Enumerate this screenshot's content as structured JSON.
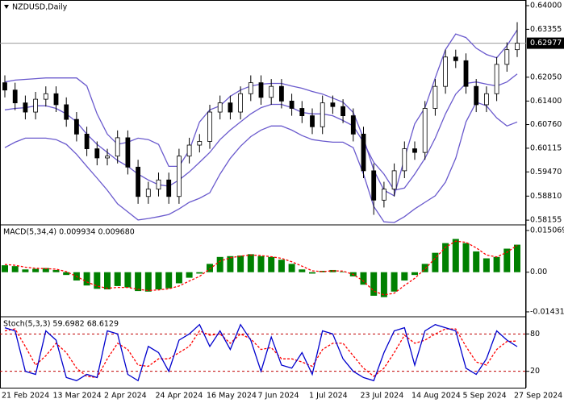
{
  "chart_data": [
    {
      "type": "candlestick",
      "title": "NZDUSD,Daily",
      "categories": [
        "21 Feb 2024",
        null,
        null,
        null,
        null,
        "13 Mar 2024",
        null,
        null,
        null,
        null,
        "2 Apr 2024",
        null,
        null,
        null,
        null,
        "24 Apr 2024",
        null,
        null,
        null,
        null,
        "16 May 2024",
        null,
        null,
        null,
        null,
        "7 Jun 2024",
        null,
        null,
        null,
        null,
        "1 Jul 2024",
        null,
        null,
        null,
        null,
        "23 Jul 2024",
        null,
        null,
        null,
        null,
        "14 Aug 2024",
        null,
        null,
        null,
        null,
        "5 Sep 2024",
        null,
        null,
        null,
        null,
        "27 Sep 2024"
      ],
      "open": [
        0.619,
        0.617,
        0.6135,
        0.611,
        0.6145,
        0.616,
        0.613,
        0.609,
        0.605,
        0.601,
        0.5985,
        0.599,
        0.604,
        0.596,
        0.588,
        0.59,
        0.5925,
        0.588,
        0.599,
        0.602,
        0.603,
        0.611,
        0.6135,
        0.611,
        0.616,
        0.619,
        0.615,
        0.618,
        0.614,
        0.612,
        0.61,
        0.607,
        0.6135,
        0.6125,
        0.61,
        0.605,
        0.595,
        0.587,
        0.59,
        0.595,
        0.601,
        0.6,
        0.612,
        0.618,
        0.626,
        0.625,
        0.618,
        0.613,
        0.616,
        0.624,
        0.628
      ],
      "high": [
        0.621,
        0.619,
        0.6155,
        0.6165,
        0.618,
        0.618,
        0.615,
        0.611,
        0.607,
        0.603,
        0.601,
        0.606,
        0.606,
        0.598,
        0.592,
        0.5945,
        0.5945,
        0.601,
        0.604,
        0.605,
        0.613,
        0.6155,
        0.6155,
        0.618,
        0.621,
        0.621,
        0.62,
        0.62,
        0.616,
        0.614,
        0.612,
        0.6155,
        0.6155,
        0.6145,
        0.612,
        0.607,
        0.597,
        0.592,
        0.597,
        0.603,
        0.603,
        0.614,
        0.62,
        0.628,
        0.628,
        0.627,
        0.62,
        0.618,
        0.626,
        0.63,
        0.6355
      ],
      "low": [
        0.615,
        0.6115,
        0.609,
        0.609,
        0.6125,
        0.611,
        0.607,
        0.603,
        0.599,
        0.5965,
        0.5965,
        0.597,
        0.594,
        0.586,
        0.586,
        0.588,
        0.586,
        0.586,
        0.597,
        0.6,
        0.601,
        0.609,
        0.609,
        0.609,
        0.614,
        0.613,
        0.613,
        0.612,
        0.61,
        0.608,
        0.605,
        0.605,
        0.6105,
        0.608,
        0.603,
        0.593,
        0.583,
        0.585,
        0.588,
        0.593,
        0.598,
        0.598,
        0.61,
        0.616,
        0.623,
        0.616,
        0.611,
        0.611,
        0.614,
        0.622,
        0.626
      ],
      "close": [
        0.617,
        0.6135,
        0.611,
        0.6145,
        0.616,
        0.613,
        0.609,
        0.605,
        0.601,
        0.5985,
        0.599,
        0.604,
        0.596,
        0.588,
        0.59,
        0.5925,
        0.588,
        0.599,
        0.602,
        0.603,
        0.611,
        0.6135,
        0.611,
        0.616,
        0.619,
        0.615,
        0.618,
        0.614,
        0.612,
        0.61,
        0.607,
        0.6135,
        0.6125,
        0.61,
        0.605,
        0.595,
        0.587,
        0.59,
        0.595,
        0.601,
        0.6,
        0.612,
        0.618,
        0.626,
        0.625,
        0.618,
        0.613,
        0.616,
        0.624,
        0.628,
        0.62977
      ],
      "color_up": "#ffffff",
      "color_down": "#000000",
      "bands": {
        "color": "#6a5acd",
        "upper": [
          0.6192,
          0.6197,
          0.6199,
          0.6201,
          0.6203,
          0.6203,
          0.6203,
          0.6203,
          0.6181,
          0.6105,
          0.605,
          0.6022,
          0.6028,
          0.6039,
          0.6035,
          0.6022,
          0.5962,
          0.5962,
          0.6006,
          0.6083,
          0.6116,
          0.6127,
          0.6153,
          0.617,
          0.6181,
          0.6186,
          0.6188,
          0.6188,
          0.6181,
          0.6175,
          0.6166,
          0.6159,
          0.6148,
          0.6137,
          0.6109,
          0.6039,
          0.5952,
          0.5897,
          0.5882,
          0.5984,
          0.6078,
          0.6122,
          0.6203,
          0.628,
          0.6323,
          0.6313,
          0.6284,
          0.6267,
          0.6258,
          0.6291,
          0.6334
        ],
        "middle": [
          0.6116,
          0.612,
          0.6122,
          0.6127,
          0.6127,
          0.612,
          0.6105,
          0.6083,
          0.605,
          0.6022,
          0.6,
          0.5978,
          0.5962,
          0.5941,
          0.5925,
          0.5912,
          0.5908,
          0.5925,
          0.5947,
          0.5973,
          0.6,
          0.6035,
          0.6061,
          0.6083,
          0.6105,
          0.6122,
          0.6131,
          0.6131,
          0.6122,
          0.6109,
          0.6105,
          0.6105,
          0.61,
          0.6087,
          0.6072,
          0.6028,
          0.5973,
          0.5941,
          0.5897,
          0.5903,
          0.5941,
          0.5984,
          0.6039,
          0.6105,
          0.6159,
          0.6188,
          0.6192,
          0.6186,
          0.6181,
          0.6192,
          0.6214
        ],
        "lower": [
          0.6013,
          0.6028,
          0.6039,
          0.6039,
          0.6039,
          0.6035,
          0.6022,
          0.5995,
          0.5962,
          0.593,
          0.5897,
          0.586,
          0.5838,
          0.5816,
          0.582,
          0.5825,
          0.5831,
          0.5846,
          0.5864,
          0.5875,
          0.589,
          0.5941,
          0.5984,
          0.6017,
          0.6043,
          0.6061,
          0.6072,
          0.6072,
          0.6061,
          0.6046,
          0.6035,
          0.6031,
          0.6028,
          0.6028,
          0.6013,
          0.5941,
          0.5853,
          0.5811,
          0.5809,
          0.5825,
          0.5846,
          0.5864,
          0.5882,
          0.5919,
          0.5984,
          0.6083,
          0.6137,
          0.6127,
          0.6094,
          0.6072,
          0.6083
        ]
      },
      "last_price": {
        "value": 0.62977,
        "label": "0.62977"
      },
      "ylim": [
        0.5807,
        0.6411
      ],
      "yticks": [
        {
          "value": 0.64,
          "label": "0.64000"
        },
        {
          "value": 0.63355,
          "label": "0.63355"
        },
        {
          "value": 0.6205,
          "label": "0.62050"
        },
        {
          "value": 0.614,
          "label": "0.61400"
        },
        {
          "value": 0.6076,
          "label": "0.60760"
        },
        {
          "value": 0.60115,
          "label": "0.60115"
        },
        {
          "value": 0.5947,
          "label": "0.59470"
        },
        {
          "value": 0.5881,
          "label": "0.58810"
        },
        {
          "value": 0.58155,
          "label": "0.58155"
        }
      ]
    },
    {
      "type": "macd",
      "title": "MACD(5,34,4) 0.009934 0.009680",
      "histogram": {
        "color": "#008000",
        "values": [
          0.0025,
          0.0022,
          0.001,
          0.0012,
          0.0015,
          0.0008,
          -0.001,
          -0.003,
          -0.0048,
          -0.006,
          -0.0062,
          -0.005,
          -0.0055,
          -0.0068,
          -0.007,
          -0.0062,
          -0.0058,
          -0.004,
          -0.002,
          -0.0005,
          0.003,
          0.0055,
          0.0058,
          0.006,
          0.0065,
          0.0058,
          0.0055,
          0.0045,
          0.003,
          0.001,
          -0.0005,
          0.0005,
          0.0008,
          0.0002,
          -0.0015,
          -0.0045,
          -0.0085,
          -0.009,
          -0.007,
          -0.003,
          -0.001,
          0.003,
          0.007,
          0.0105,
          0.012,
          0.0105,
          0.0075,
          0.005,
          0.0055,
          0.0085,
          0.009934
        ]
      },
      "signal": {
        "color": "#ff0000",
        "values": [
          0.0028,
          0.0025,
          0.0018,
          0.0014,
          0.0013,
          0.0011,
          0.0002,
          -0.0015,
          -0.0035,
          -0.005,
          -0.0058,
          -0.0055,
          -0.0055,
          -0.0062,
          -0.0066,
          -0.0064,
          -0.006,
          -0.005,
          -0.0032,
          -0.0015,
          0.0012,
          0.004,
          0.0052,
          0.0058,
          0.0062,
          0.006,
          0.0056,
          0.005,
          0.0038,
          0.0022,
          0.0005,
          0.0002,
          0.0005,
          0.0004,
          -0.0008,
          -0.0032,
          -0.0068,
          -0.0082,
          -0.0076,
          -0.0048,
          -0.0022,
          0.0012,
          0.005,
          0.009,
          0.0112,
          0.0108,
          0.0088,
          0.0062,
          0.0055,
          0.0072,
          0.00968
        ]
      },
      "ylim": [
        -0.0155,
        0.0165
      ],
      "yticks": [
        0.015069,
        {
          "value": 0,
          "label": "0.00"
        },
        -0.014318
      ]
    },
    {
      "type": "stochastic",
      "title": "Stoch(5,3,3) 59.6982 68.6129",
      "main": {
        "color": "#0000cd",
        "values": [
          90,
          85,
          20,
          15,
          85,
          70,
          10,
          5,
          15,
          10,
          85,
          80,
          15,
          5,
          60,
          50,
          20,
          70,
          80,
          95,
          60,
          85,
          55,
          95,
          70,
          20,
          75,
          30,
          25,
          50,
          15,
          85,
          80,
          40,
          20,
          10,
          5,
          50,
          85,
          90,
          30,
          85,
          95,
          90,
          85,
          25,
          15,
          40,
          85,
          70,
          59.6982
        ]
      },
      "signal": {
        "color": "#ff0000",
        "values": [
          85,
          88,
          60,
          30,
          45,
          65,
          50,
          25,
          12,
          10,
          40,
          65,
          55,
          30,
          28,
          40,
          40,
          50,
          60,
          85,
          78,
          80,
          65,
          80,
          72,
          55,
          58,
          40,
          40,
          35,
          28,
          55,
          65,
          65,
          45,
          25,
          12,
          25,
          50,
          78,
          65,
          70,
          80,
          88,
          88,
          60,
          35,
          30,
          55,
          68,
          68.6129
        ]
      },
      "level_color": "#c00000",
      "ylim": [
        -5,
        105
      ],
      "yticks": [
        80,
        20
      ]
    }
  ]
}
